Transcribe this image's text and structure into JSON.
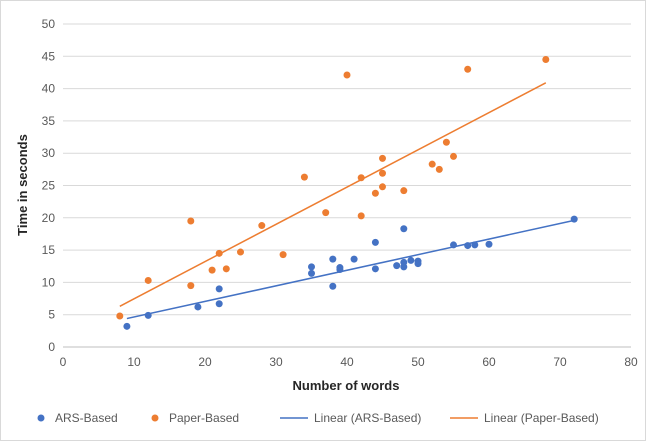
{
  "chart_data": {
    "type": "scatter",
    "xlabel": "Number of words",
    "ylabel": "Time in seconds",
    "xlim": [
      0,
      80
    ],
    "ylim": [
      0,
      50
    ],
    "xticks": [
      0,
      10,
      20,
      30,
      40,
      50,
      60,
      70,
      80
    ],
    "yticks": [
      0,
      5,
      10,
      15,
      20,
      25,
      30,
      35,
      40,
      45,
      50
    ],
    "grid": "horizontal",
    "legend_position": "bottom",
    "series": [
      {
        "name": "ARS-Based",
        "color": "#4472c4",
        "points": [
          [
            9,
            3.2
          ],
          [
            12,
            4.9
          ],
          [
            19,
            6.2
          ],
          [
            22,
            6.7
          ],
          [
            22,
            9.0
          ],
          [
            35,
            11.4
          ],
          [
            35,
            12.4
          ],
          [
            38,
            9.4
          ],
          [
            38,
            13.6
          ],
          [
            39,
            12.0
          ],
          [
            39,
            12.3
          ],
          [
            41,
            13.6
          ],
          [
            44,
            16.2
          ],
          [
            44,
            12.1
          ],
          [
            47,
            12.6
          ],
          [
            48,
            18.3
          ],
          [
            48,
            12.4
          ],
          [
            48,
            13.1
          ],
          [
            49,
            13.4
          ],
          [
            50,
            13.3
          ],
          [
            50,
            12.9
          ],
          [
            55,
            15.8
          ],
          [
            57,
            15.7
          ],
          [
            58,
            15.8
          ],
          [
            60,
            15.9
          ],
          [
            72,
            19.8
          ]
        ]
      },
      {
        "name": "Paper-Based",
        "color": "#ed7d31",
        "points": [
          [
            8,
            4.8
          ],
          [
            12,
            10.3
          ],
          [
            18,
            19.5
          ],
          [
            18,
            9.5
          ],
          [
            21,
            11.9
          ],
          [
            22,
            14.5
          ],
          [
            23,
            12.1
          ],
          [
            25,
            14.7
          ],
          [
            28,
            18.8
          ],
          [
            31,
            14.3
          ],
          [
            34,
            26.3
          ],
          [
            37,
            20.8
          ],
          [
            40,
            42.1
          ],
          [
            42,
            26.2
          ],
          [
            42,
            20.3
          ],
          [
            44,
            23.8
          ],
          [
            45,
            29.2
          ],
          [
            45,
            26.9
          ],
          [
            45,
            24.8
          ],
          [
            48,
            24.2
          ],
          [
            52,
            28.3
          ],
          [
            53,
            27.5
          ],
          [
            54,
            31.7
          ],
          [
            55,
            29.5
          ],
          [
            57,
            43.0
          ],
          [
            68,
            44.5
          ]
        ]
      }
    ],
    "trendlines": [
      {
        "name": "Linear (ARS-Based)",
        "color": "#4472c4",
        "from": [
          9,
          4.4
        ],
        "to": [
          72,
          19.6
        ]
      },
      {
        "name": "Linear (Paper-Based)",
        "color": "#ed7d31",
        "from": [
          8,
          6.3
        ],
        "to": [
          68,
          40.9
        ]
      }
    ]
  }
}
